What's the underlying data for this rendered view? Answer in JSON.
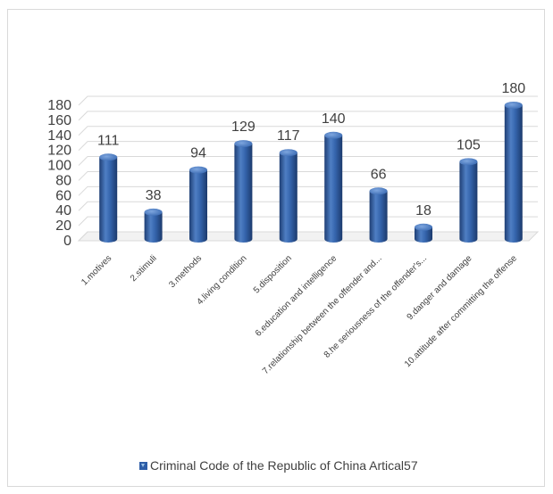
{
  "chart_data": {
    "type": "bar",
    "categories": [
      "1.motives",
      "2.stimuli",
      "3.methods",
      "4.living condition",
      "5.disposition",
      "6.education and intelligence",
      "7.relationship between the offender and...",
      "8.he seriousness of the offender's...",
      "9.danger and damage",
      "10.attitude after committing the offense"
    ],
    "series": [
      {
        "name": "Criminal Code of the Republic of China Artical57",
        "values": [
          111,
          38,
          94,
          129,
          117,
          140,
          66,
          18,
          105,
          180
        ]
      }
    ],
    "data_labels": [
      "111",
      "38",
      "94",
      "129",
      "117",
      "140",
      "66",
      "18",
      "105",
      "180"
    ],
    "ylim": [
      0,
      180
    ],
    "yticks": [
      "0",
      "20",
      "40",
      "60",
      "80",
      "100",
      "120",
      "140",
      "160",
      "180"
    ],
    "grid": true,
    "legend_position": "bottom",
    "colors": {
      "bar": "#2e5ea8",
      "bar_dark": "#1f3f75",
      "bar_light": "#6f9ad6",
      "grid": "#d9d9d9"
    }
  }
}
